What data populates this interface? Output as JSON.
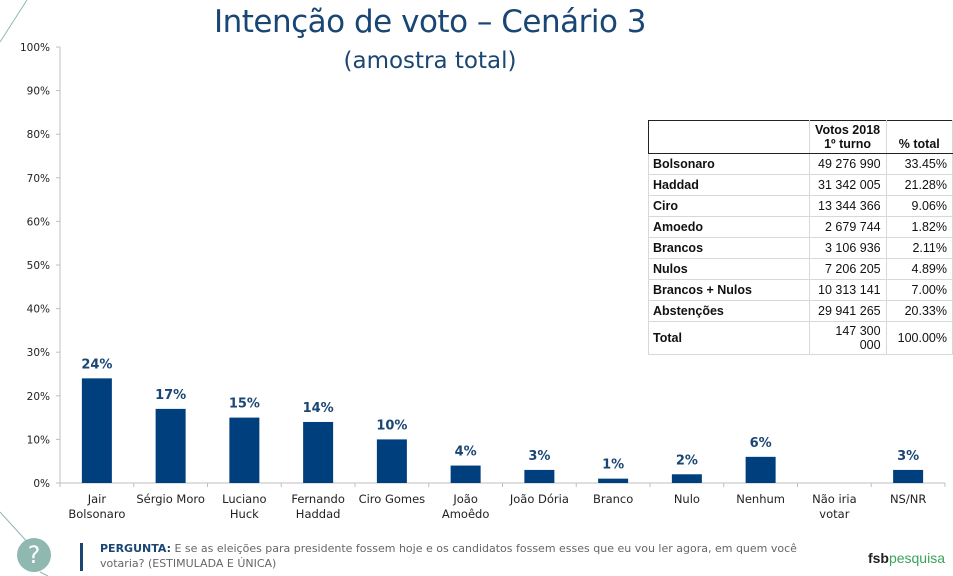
{
  "header": {
    "title": "Intenção de voto – Cenário 3",
    "subtitle": "(amostra total)"
  },
  "colors": {
    "bar": "#003f7d",
    "title": "#1a4674",
    "accent_green": "#3aa35a",
    "help_circle": "#8fb8b0"
  },
  "chart_data": {
    "type": "bar",
    "title": "Intenção de voto – Cenário 3",
    "subtitle": "(amostra total)",
    "xlabel": "",
    "ylabel": "",
    "ylim": [
      0,
      100
    ],
    "yticks": [
      "0%",
      "10%",
      "20%",
      "30%",
      "40%",
      "50%",
      "60%",
      "70%",
      "80%",
      "90%",
      "100%"
    ],
    "grid": false,
    "categories": [
      [
        "Jair",
        "Bolsonaro"
      ],
      [
        "Sérgio Moro"
      ],
      [
        "Luciano",
        "Huck"
      ],
      [
        "Fernando",
        "Haddad"
      ],
      [
        "Ciro Gomes"
      ],
      [
        "João",
        "Amoêdo"
      ],
      [
        "João Dória"
      ],
      [
        "Branco"
      ],
      [
        "Nulo"
      ],
      [
        "Nenhum"
      ],
      [
        "Não iria",
        "votar"
      ],
      [
        "NS/NR"
      ]
    ],
    "values": [
      24,
      17,
      15,
      14,
      10,
      4,
      3,
      1,
      2,
      6,
      0,
      3
    ],
    "data_labels": [
      "24%",
      "17%",
      "15%",
      "14%",
      "10%",
      "4%",
      "3%",
      "1%",
      "2%",
      "6%",
      "",
      "3%"
    ]
  },
  "table": {
    "headers": [
      "",
      "Votos 2018\n1º turno",
      "% total"
    ],
    "header_line1": "Votos 2018",
    "header_line2": "1º turno",
    "header_pct": "% total",
    "rows": [
      {
        "name": "Bolsonaro",
        "votes": "49 276 990",
        "pct": "33.45%"
      },
      {
        "name": "Haddad",
        "votes": "31 342 005",
        "pct": "21.28%"
      },
      {
        "name": "Ciro",
        "votes": "13 344 366",
        "pct": "9.06%"
      },
      {
        "name": "Amoedo",
        "votes": "2 679 744",
        "pct": "1.82%"
      },
      {
        "name": "Brancos",
        "votes": "3 106 936",
        "pct": "2.11%"
      },
      {
        "name": "Nulos",
        "votes": "7 206 205",
        "pct": "4.89%"
      },
      {
        "name": "Brancos + Nulos",
        "votes": "10 313 141",
        "pct": "7.00%"
      },
      {
        "name": "Abstenções",
        "votes": "29 941 265",
        "pct": "20.33%"
      },
      {
        "name": "Total",
        "votes": "147 300 000",
        "pct": "100.00%"
      }
    ]
  },
  "footer": {
    "question_label": "PERGUNTA:",
    "question_text": " E se as eleições para presidente fossem hoje e os candidatos fossem esses que eu vou ler agora, em quem você votaria? (ESTIMULADA E ÚNICA)",
    "help_icon": "?",
    "logo_part1": "fsb",
    "logo_part2": "pesquisa"
  }
}
